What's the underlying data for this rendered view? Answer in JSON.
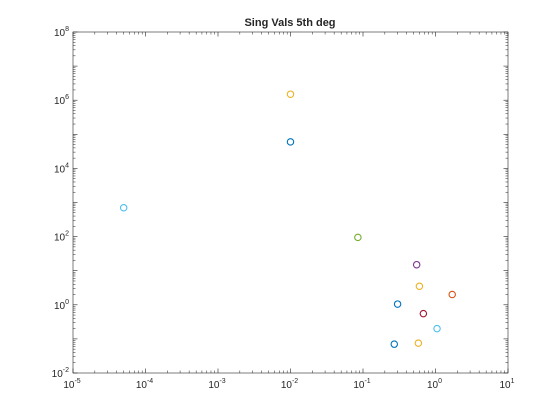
{
  "chart_data": {
    "type": "scatter",
    "title": "Sing Vals 5th deg",
    "xlabel": "",
    "ylabel": "",
    "xscale": "log",
    "yscale": "log",
    "xlim": [
      1e-05,
      10
    ],
    "ylim": [
      0.01,
      100000000
    ],
    "grid": false,
    "box": true,
    "x_ticks": [
      {
        "value": 1e-05,
        "base": "10",
        "exp": "-5"
      },
      {
        "value": 0.0001,
        "base": "10",
        "exp": "-4"
      },
      {
        "value": 0.001,
        "base": "10",
        "exp": "-3"
      },
      {
        "value": 0.01,
        "base": "10",
        "exp": "-2"
      },
      {
        "value": 0.1,
        "base": "10",
        "exp": "-1"
      },
      {
        "value": 1,
        "base": "10",
        "exp": "0"
      },
      {
        "value": 10,
        "base": "10",
        "exp": "1"
      }
    ],
    "y_ticks": [
      {
        "value": 0.01,
        "base": "10",
        "exp": "-2"
      },
      {
        "value": 1,
        "base": "10",
        "exp": "0"
      },
      {
        "value": 100,
        "base": "10",
        "exp": "2"
      },
      {
        "value": 10000,
        "base": "10",
        "exp": "4"
      },
      {
        "value": 1000000,
        "base": "10",
        "exp": "6"
      },
      {
        "value": 100000000,
        "base": "10",
        "exp": "8"
      }
    ],
    "points": [
      {
        "x": 0.01,
        "y": 1500000,
        "color": "#EDB120"
      },
      {
        "x": 0.01,
        "y": 60000,
        "color": "#0072BD"
      },
      {
        "x": 5e-05,
        "y": 700,
        "color": "#4DBEEE"
      },
      {
        "x": 0.085,
        "y": 95,
        "color": "#77AC30"
      },
      {
        "x": 0.55,
        "y": 15,
        "color": "#7E2F8E"
      },
      {
        "x": 0.6,
        "y": 3.5,
        "color": "#EDB120"
      },
      {
        "x": 1.7,
        "y": 2,
        "color": "#D95319"
      },
      {
        "x": 0.3,
        "y": 1.05,
        "color": "#0072BD"
      },
      {
        "x": 0.68,
        "y": 0.55,
        "color": "#A2142F"
      },
      {
        "x": 1.05,
        "y": 0.2,
        "color": "#4DBEEE"
      },
      {
        "x": 0.27,
        "y": 0.07,
        "color": "#0072BD"
      },
      {
        "x": 0.58,
        "y": 0.075,
        "color": "#EDB120"
      }
    ]
  }
}
